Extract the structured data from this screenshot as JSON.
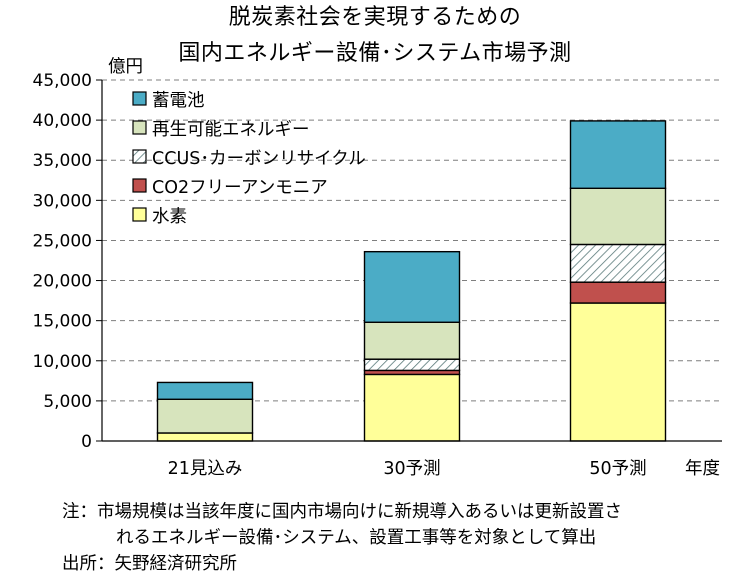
{
  "title": {
    "line1": "脱炭素社会を実現するための",
    "line2": "国内エネルギー設備･システム市場予測"
  },
  "note": {
    "line1": "注：市場規模は当該年度に国内市場向けに新規導入あるいは更新設置さ",
    "line2": "れるエネルギー設備･システム、設置工事等を対象として算出"
  },
  "source": "出所：矢野経済研究所",
  "chart_data": {
    "type": "bar",
    "stacked": true,
    "ylabel": "億円",
    "xlabel": "年度",
    "ylim": [
      0,
      45000
    ],
    "yticks": [
      0,
      5000,
      10000,
      15000,
      20000,
      25000,
      30000,
      35000,
      40000,
      45000
    ],
    "ytick_labels": [
      "0",
      "5,000",
      "10,000",
      "15,000",
      "20,000",
      "25,000",
      "30,000",
      "35,000",
      "40,000",
      "45,000"
    ],
    "grid": "dashed-horizontal",
    "legend_position": "top-left",
    "categories": [
      "21見込み",
      "30予測",
      "50予測"
    ],
    "series": [
      {
        "name": "水素",
        "color": "#ffff99",
        "pattern": "solid",
        "values": [
          1000,
          8300,
          17200
        ]
      },
      {
        "name": "CO2フリーアンモニア",
        "color": "#c0504d",
        "pattern": "solid",
        "values": [
          0,
          500,
          2600
        ]
      },
      {
        "name": "CCUS･カーボンリサイクル",
        "color": "#ffffff",
        "pattern": "hatch",
        "values": [
          0,
          1400,
          4700
        ]
      },
      {
        "name": "再生可能エネルギー",
        "color": "#d7e4bd",
        "pattern": "solid",
        "values": [
          4200,
          4600,
          7000
        ]
      },
      {
        "name": "蓄電池",
        "color": "#4bacc6",
        "pattern": "solid",
        "values": [
          2100,
          8800,
          8400
        ]
      }
    ],
    "legend_order": [
      "蓄電池",
      "再生可能エネルギー",
      "CCUS･カーボンリサイクル",
      "CO2フリーアンモニア",
      "水素"
    ]
  }
}
